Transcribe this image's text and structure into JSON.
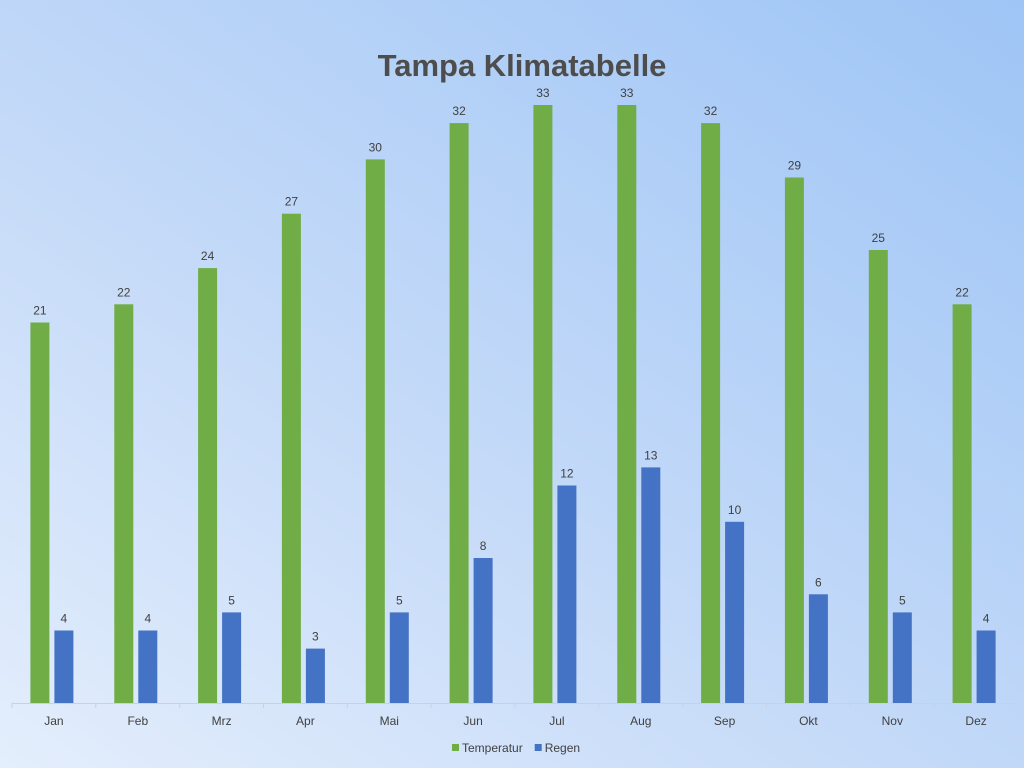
{
  "chart_data": {
    "type": "bar",
    "title": "Tampa Klimatabelle",
    "categories": [
      "Jan",
      "Feb",
      "Mrz",
      "Apr",
      "Mai",
      "Jun",
      "Jul",
      "Aug",
      "Sep",
      "Okt",
      "Nov",
      "Dez"
    ],
    "series": [
      {
        "name": "Temperatur",
        "color": "#70ad47",
        "values": [
          21,
          22,
          24,
          27,
          30,
          32,
          33,
          33,
          32,
          29,
          25,
          22
        ]
      },
      {
        "name": "Regen",
        "color": "#4472c4",
        "values": [
          4,
          4,
          5,
          3,
          5,
          8,
          12,
          13,
          10,
          6,
          5,
          4
        ]
      }
    ],
    "ylim": [
      0,
      33
    ],
    "grid": false,
    "legend": "bottom",
    "data_labels": true,
    "xlabel": "",
    "ylabel": ""
  }
}
